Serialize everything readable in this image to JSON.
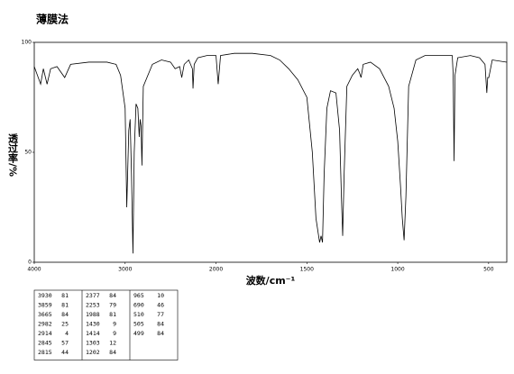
{
  "chart_data": {
    "type": "line",
    "title": "薄膜法",
    "y_label": "透过率/%",
    "x_label": "波数/cm⁻¹",
    "color": "#000000",
    "xlim": [
      4000,
      400
    ],
    "x_scale_change": 2000,
    "x_scale_ratio": 2,
    "xticks": [
      4000,
      3000,
      2000,
      1500,
      1000,
      500
    ],
    "ylim": [
      0,
      100
    ],
    "yticks": [
      0,
      50,
      100
    ],
    "x": [
      4000,
      3930,
      3900,
      3859,
      3820,
      3750,
      3665,
      3600,
      3400,
      3200,
      3100,
      3050,
      3000,
      2982,
      2960,
      2945,
      2930,
      2914,
      2900,
      2880,
      2860,
      2845,
      2835,
      2825,
      2815,
      2800,
      2700,
      2600,
      2500,
      2450,
      2400,
      2377,
      2350,
      2300,
      2260,
      2253,
      2240,
      2200,
      2100,
      2000,
      1988,
      1975,
      1900,
      1800,
      1700,
      1650,
      1600,
      1550,
      1500,
      1470,
      1450,
      1430,
      1422,
      1414,
      1405,
      1390,
      1370,
      1340,
      1320,
      1310,
      1303,
      1295,
      1280,
      1250,
      1220,
      1210,
      1202,
      1190,
      1150,
      1100,
      1050,
      1020,
      1000,
      985,
      975,
      965,
      955,
      940,
      900,
      850,
      700,
      695,
      690,
      685,
      670,
      600,
      550,
      520,
      510,
      505,
      499,
      480,
      400
    ],
    "values": [
      89,
      81,
      88,
      81,
      88,
      89,
      84,
      90,
      91,
      91,
      90,
      85,
      70,
      25,
      60,
      65,
      40,
      4,
      50,
      72,
      70,
      57,
      65,
      62,
      44,
      80,
      90,
      92,
      91,
      88,
      89,
      84,
      90,
      92,
      88,
      79,
      90,
      93,
      94,
      94,
      81,
      94,
      95,
      95,
      94,
      92,
      88,
      83,
      75,
      50,
      20,
      9,
      12,
      9,
      40,
      70,
      78,
      77,
      60,
      30,
      12,
      40,
      80,
      85,
      88,
      86,
      84,
      90,
      91,
      88,
      80,
      70,
      55,
      35,
      20,
      10,
      30,
      80,
      92,
      94,
      94,
      85,
      46,
      85,
      93,
      94,
      93,
      90,
      77,
      84,
      84,
      92,
      91
    ],
    "peak_table": [
      [
        [
          3930,
          81
        ],
        [
          3859,
          81
        ],
        [
          3665,
          84
        ],
        [
          2982,
          25
        ],
        [
          2914,
          4
        ],
        [
          2845,
          57
        ],
        [
          2815,
          44
        ]
      ],
      [
        [
          2377,
          84
        ],
        [
          2253,
          79
        ],
        [
          1988,
          81
        ],
        [
          1430,
          9
        ],
        [
          1414,
          9
        ],
        [
          1303,
          12
        ],
        [
          1202,
          84
        ]
      ],
      [
        [
          965,
          10
        ],
        [
          690,
          46
        ],
        [
          510,
          77
        ],
        [
          505,
          84
        ],
        [
          499,
          84
        ]
      ]
    ]
  }
}
